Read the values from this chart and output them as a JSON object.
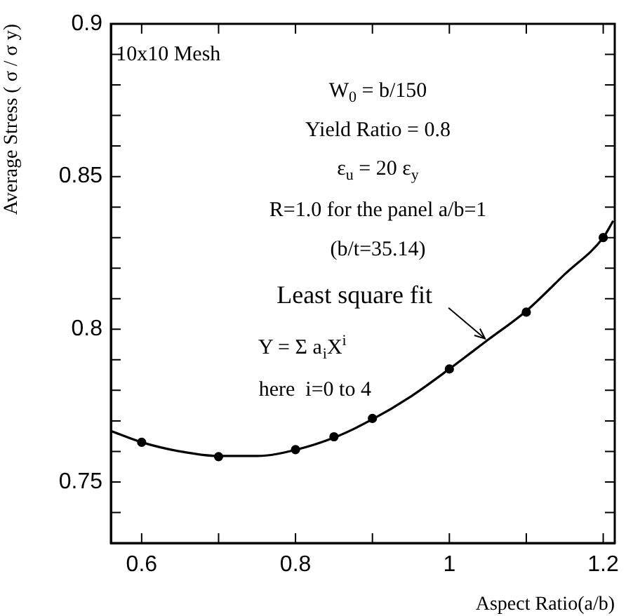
{
  "chart_data": {
    "type": "line",
    "xlabel": "Aspect Ratio(a/b)",
    "ylabel": "Average Stress ( σ / σ y)",
    "xlim": [
      0.56,
      1.215
    ],
    "ylim": [
      0.73,
      0.9
    ],
    "xticks": [
      0.6,
      {
        "value": 0.7,
        "label": null
      },
      0.8,
      {
        "value": 0.9,
        "label": null
      },
      1,
      {
        "value": 1.1,
        "label": null
      },
      1.2
    ],
    "yticks": [
      {
        "value": 0.74,
        "label": null
      },
      0.75,
      {
        "value": 0.76,
        "label": null
      },
      {
        "value": 0.77,
        "label": null
      },
      {
        "value": 0.78,
        "label": null
      },
      {
        "value": 0.79,
        "label": null
      },
      0.8,
      {
        "value": 0.81,
        "label": null
      },
      {
        "value": 0.82,
        "label": null
      },
      {
        "value": 0.83,
        "label": null
      },
      {
        "value": 0.84,
        "label": null
      },
      0.85,
      {
        "value": 0.86,
        "label": null
      },
      {
        "value": 0.87,
        "label": null
      },
      {
        "value": 0.88,
        "label": null
      },
      {
        "value": 0.89,
        "label": null
      },
      0.9
    ],
    "grid": false,
    "legend": false,
    "series": [
      {
        "color": "#000000",
        "marker": "none",
        "line_style": "solid",
        "x": [
          0.56,
          0.6,
          0.65,
          0.7,
          0.75,
          0.8,
          0.85,
          0.9,
          0.95,
          1.0,
          1.05,
          1.1,
          1.15,
          1.2,
          1.213
        ],
        "values": [
          0.7667,
          0.763,
          0.76,
          0.7585,
          0.7585,
          0.7605,
          0.7645,
          0.7705,
          0.778,
          0.787,
          0.7965,
          0.806,
          0.818,
          0.83,
          0.8355
        ]
      },
      {
        "type": "scatter",
        "color": "#000000",
        "marker": "circle",
        "x": [
          0.6,
          0.7,
          0.8,
          0.85,
          0.9,
          1.0,
          1.1,
          1.2
        ],
        "values": [
          0.763,
          0.7583,
          0.7606,
          0.7648,
          0.7708,
          0.787,
          0.8056,
          0.83
        ]
      }
    ],
    "annotations": [
      "10x10 Mesh",
      "W$_{0}$ = b/150",
      "Yield Ratio = 0.8",
      "ε$_{u}$ = 20 ε$_{y}$",
      "R=1.0 for the panel a/b=1",
      "(b/t=35.14)",
      {
        "text": "Least square fit",
        "x": 1.05,
        "y": 0.796
      },
      "Y = Σ a$_{i}$X$^{i}$",
      "here  i=0 to 4"
    ]
  }
}
